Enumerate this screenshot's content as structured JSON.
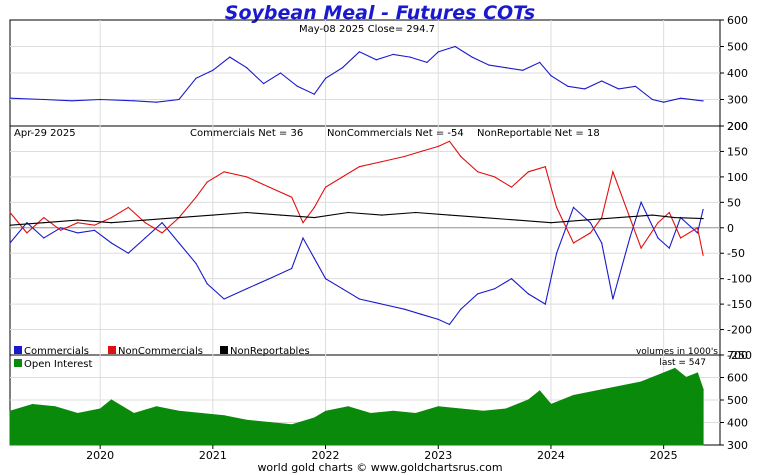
{
  "chart_data": [
    {
      "type": "line",
      "title": "Soybean Meal - Futures COTs",
      "subtitle": "May-08  2025   Close= 294.7",
      "ylim": [
        200,
        600
      ],
      "yticks": [
        "200",
        "300",
        "400",
        "500",
        "600"
      ],
      "series": [
        {
          "color": "#1a1acc",
          "x": [
            2019.2,
            2019.5,
            2019.75,
            2020.0,
            2020.3,
            2020.5,
            2020.7,
            2020.85,
            2021.0,
            2021.15,
            2021.3,
            2021.45,
            2021.6,
            2021.75,
            2021.9,
            2022.0,
            2022.15,
            2022.3,
            2022.45,
            2022.6,
            2022.75,
            2022.9,
            2023.0,
            2023.15,
            2023.3,
            2023.45,
            2023.6,
            2023.75,
            2023.9,
            2024.0,
            2024.15,
            2024.3,
            2024.45,
            2024.6,
            2024.75,
            2024.9,
            2025.0,
            2025.15,
            2025.35
          ],
          "values": [
            305,
            300,
            295,
            300,
            295,
            290,
            300,
            380,
            410,
            460,
            420,
            360,
            400,
            350,
            320,
            380,
            420,
            480,
            450,
            470,
            460,
            440,
            480,
            500,
            460,
            430,
            420,
            410,
            440,
            390,
            350,
            340,
            370,
            340,
            350,
            300,
            290,
            305,
            294.7
          ]
        }
      ]
    },
    {
      "type": "line",
      "info": "Apr-29  2025",
      "commercials_net_label": "Commercials Net = 36",
      "noncommercials_net_label": "NonCommercials Net = -54",
      "nonreportable_net_label": "NonReportable Net = 18",
      "ylim": [
        -250,
        200
      ],
      "yticks": [
        "-250",
        "-200",
        "-150",
        "-100",
        "-50",
        "0",
        "50",
        "100",
        "150",
        "200"
      ],
      "volume_note": "volumes in 1000's",
      "legend": [
        "Commercials",
        "NonCommercials",
        "NonReportables"
      ],
      "series": [
        {
          "name": "Commercials",
          "color": "#1a1acc",
          "x": [
            2019.2,
            2019.35,
            2019.5,
            2019.65,
            2019.8,
            2019.95,
            2020.1,
            2020.25,
            2020.4,
            2020.55,
            2020.7,
            2020.85,
            2020.95,
            2021.1,
            2021.3,
            2021.5,
            2021.7,
            2021.8,
            2021.9,
            2022.0,
            2022.15,
            2022.3,
            2022.5,
            2022.7,
            2022.85,
            2023.0,
            2023.1,
            2023.2,
            2023.35,
            2023.5,
            2023.65,
            2023.8,
            2023.95,
            2024.05,
            2024.2,
            2024.35,
            2024.45,
            2024.55,
            2024.7,
            2024.8,
            2024.95,
            2025.05,
            2025.15,
            2025.3,
            2025.35
          ],
          "values": [
            -30,
            10,
            -20,
            0,
            -10,
            -5,
            -30,
            -50,
            -20,
            10,
            -30,
            -70,
            -110,
            -140,
            -120,
            -100,
            -80,
            -20,
            -60,
            -100,
            -120,
            -140,
            -150,
            -160,
            -170,
            -180,
            -190,
            -160,
            -130,
            -120,
            -100,
            -130,
            -150,
            -50,
            40,
            10,
            -30,
            -140,
            -20,
            50,
            -20,
            -40,
            20,
            -10,
            36
          ]
        },
        {
          "name": "NonCommercials",
          "color": "#e01010",
          "x": [
            2019.2,
            2019.35,
            2019.5,
            2019.65,
            2019.8,
            2019.95,
            2020.1,
            2020.25,
            2020.4,
            2020.55,
            2020.7,
            2020.85,
            2020.95,
            2021.1,
            2021.3,
            2021.5,
            2021.7,
            2021.8,
            2021.9,
            2022.0,
            2022.15,
            2022.3,
            2022.5,
            2022.7,
            2022.85,
            2023.0,
            2023.1,
            2023.2,
            2023.35,
            2023.5,
            2023.65,
            2023.8,
            2023.95,
            2024.05,
            2024.2,
            2024.35,
            2024.45,
            2024.55,
            2024.7,
            2024.8,
            2024.95,
            2025.05,
            2025.15,
            2025.3,
            2025.35
          ],
          "values": [
            30,
            -10,
            20,
            -5,
            10,
            5,
            20,
            40,
            10,
            -10,
            20,
            60,
            90,
            110,
            100,
            80,
            60,
            10,
            40,
            80,
            100,
            120,
            130,
            140,
            150,
            160,
            170,
            140,
            110,
            100,
            80,
            110,
            120,
            40,
            -30,
            -10,
            20,
            110,
            20,
            -40,
            10,
            30,
            -20,
            0,
            -54
          ]
        },
        {
          "name": "NonReportables",
          "color": "#000000",
          "x": [
            2019.2,
            2019.5,
            2019.8,
            2020.1,
            2020.4,
            2020.7,
            2021.0,
            2021.3,
            2021.6,
            2021.9,
            2022.2,
            2022.5,
            2022.8,
            2023.1,
            2023.4,
            2023.7,
            2024.0,
            2024.3,
            2024.6,
            2024.9,
            2025.1,
            2025.35
          ],
          "values": [
            5,
            10,
            15,
            10,
            15,
            20,
            25,
            30,
            25,
            20,
            30,
            25,
            30,
            25,
            20,
            15,
            10,
            15,
            20,
            25,
            20,
            18
          ]
        }
      ]
    },
    {
      "type": "area",
      "legend": [
        "Open Interest"
      ],
      "last_label": "last = 547",
      "ylim": [
        300,
        700
      ],
      "yticks": [
        "300",
        "400",
        "500",
        "600",
        "700"
      ],
      "xticks": [
        "2020",
        "2021",
        "2022",
        "2023",
        "2024",
        "2025"
      ],
      "series": [
        {
          "name": "Open Interest",
          "color": "#0a8a0a",
          "x": [
            2019.2,
            2019.4,
            2019.6,
            2019.8,
            2020.0,
            2020.1,
            2020.3,
            2020.5,
            2020.7,
            2020.9,
            2021.1,
            2021.3,
            2021.5,
            2021.7,
            2021.9,
            2022.0,
            2022.2,
            2022.4,
            2022.6,
            2022.8,
            2023.0,
            2023.2,
            2023.4,
            2023.6,
            2023.8,
            2023.9,
            2024.0,
            2024.2,
            2024.4,
            2024.6,
            2024.8,
            2025.0,
            2025.1,
            2025.2,
            2025.3,
            2025.35
          ],
          "values": [
            450,
            480,
            470,
            440,
            460,
            500,
            440,
            470,
            450,
            440,
            430,
            410,
            400,
            390,
            420,
            450,
            470,
            440,
            450,
            440,
            470,
            460,
            450,
            460,
            500,
            540,
            480,
            520,
            540,
            560,
            580,
            620,
            640,
            600,
            620,
            547
          ]
        }
      ]
    }
  ],
  "footer": "world gold charts © www.goldchartsrus.com"
}
